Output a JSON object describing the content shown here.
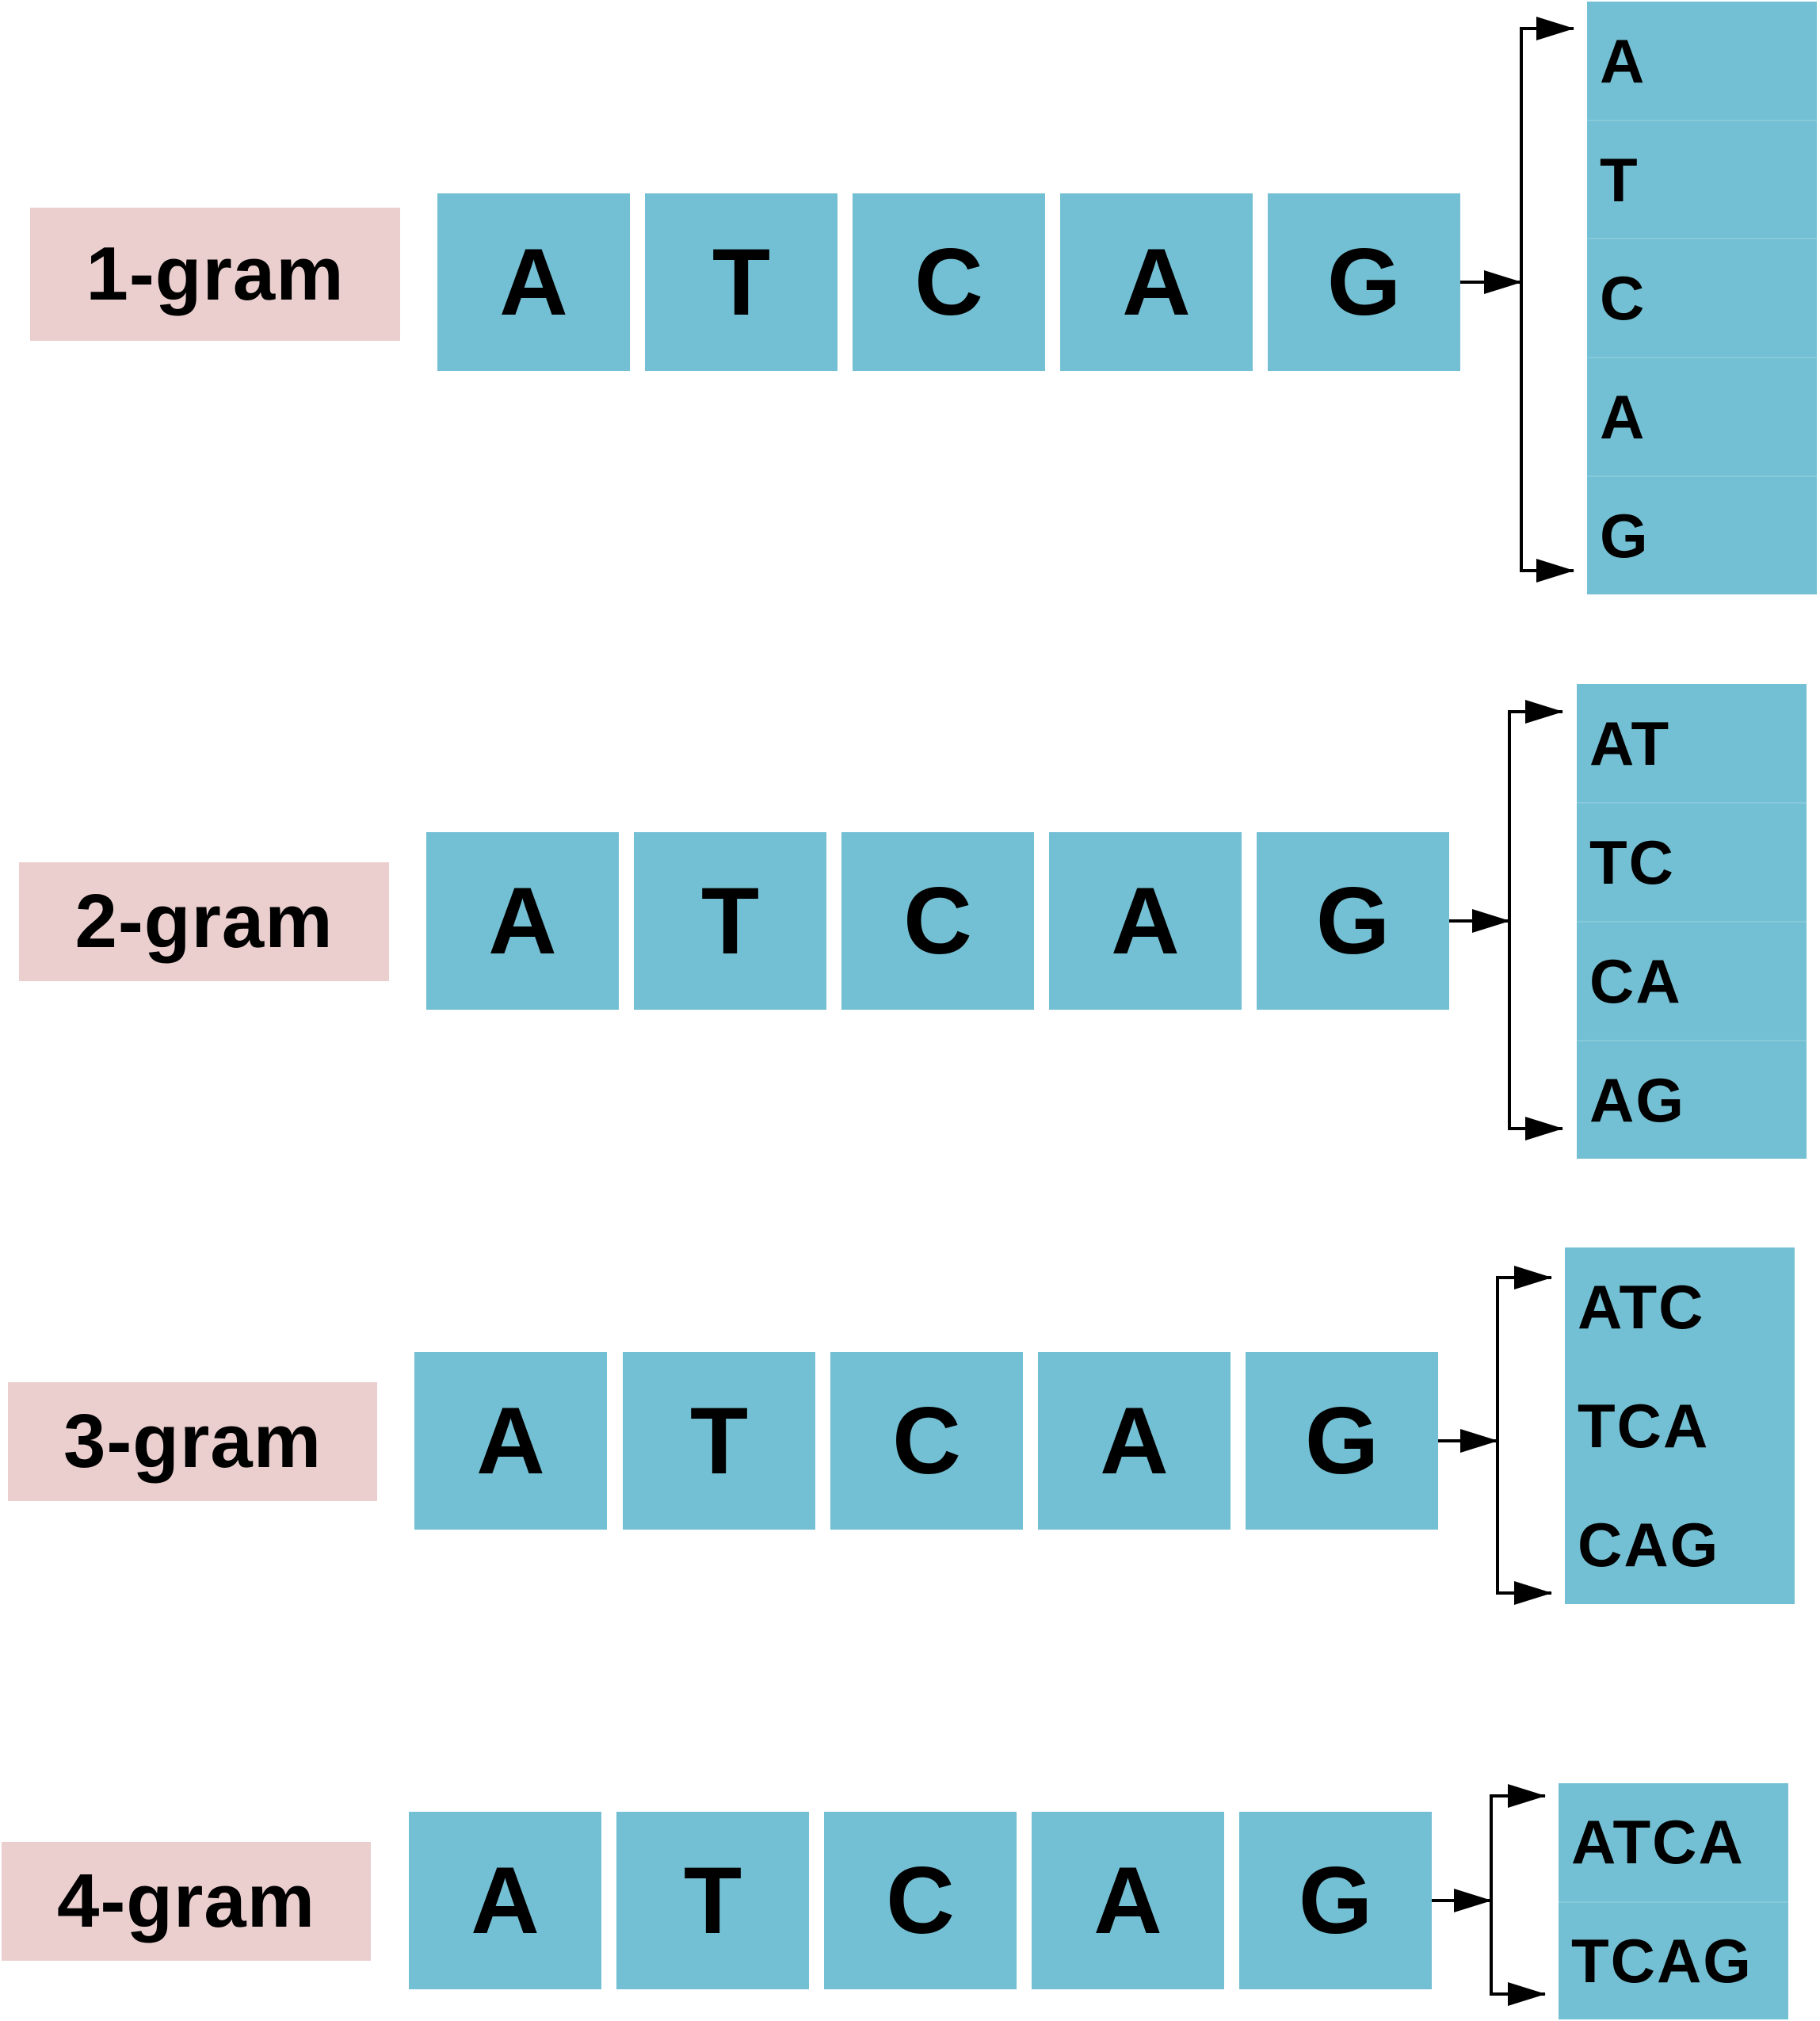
{
  "rows": [
    {
      "label": "1-gram",
      "sequence": [
        "A",
        "T",
        "C",
        "A",
        "G"
      ],
      "outputs": [
        "A",
        "T",
        "C",
        "A",
        "G"
      ]
    },
    {
      "label": "2-gram",
      "sequence": [
        "A",
        "T",
        "C",
        "A",
        "G"
      ],
      "outputs": [
        "AT",
        "TC",
        "CA",
        "AG"
      ]
    },
    {
      "label": "3-gram",
      "sequence": [
        "A",
        "T",
        "C",
        "A",
        "G"
      ],
      "outputs": [
        "ATC",
        "TCA",
        "CAG"
      ]
    },
    {
      "label": "4-gram",
      "sequence": [
        "A",
        "T",
        "C",
        "A",
        "G"
      ],
      "outputs": [
        "ATCA",
        "TCAG"
      ]
    }
  ],
  "colors": {
    "label_background": "#ebcfcf",
    "box_background": "#73bfd3",
    "text": "#000000",
    "arrow": "#000000"
  }
}
